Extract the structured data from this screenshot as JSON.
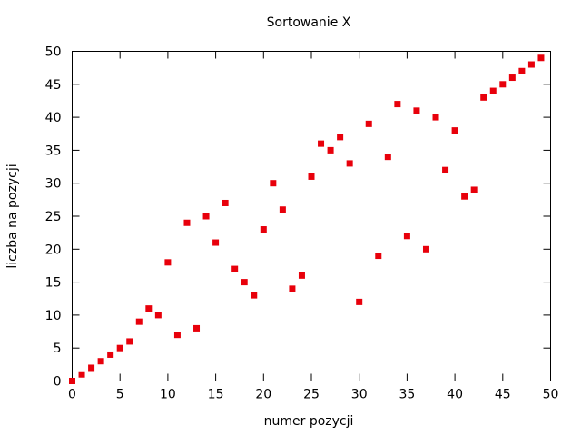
{
  "chart_data": {
    "type": "scatter",
    "title": "Sortowanie X",
    "xlabel": "numer pozycji",
    "ylabel": "liczba na pozycji",
    "xlim": [
      0,
      50
    ],
    "ylim": [
      0,
      50
    ],
    "x_ticks": [
      0,
      5,
      10,
      15,
      20,
      25,
      30,
      35,
      40,
      45,
      50
    ],
    "y_ticks": [
      0,
      5,
      10,
      15,
      20,
      25,
      30,
      35,
      40,
      45,
      50
    ],
    "grid": false,
    "marker_color": "#e8000b",
    "x": [
      0,
      1,
      2,
      3,
      4,
      5,
      6,
      7,
      8,
      9,
      10,
      11,
      12,
      13,
      14,
      15,
      16,
      17,
      18,
      19,
      20,
      21,
      22,
      23,
      24,
      25,
      26,
      27,
      28,
      29,
      30,
      31,
      32,
      33,
      34,
      35,
      36,
      37,
      38,
      39,
      40,
      41,
      42,
      43,
      44,
      45,
      46,
      47,
      48,
      49
    ],
    "y": [
      0,
      1,
      2,
      3,
      4,
      5,
      6,
      9,
      11,
      10,
      18,
      7,
      24,
      8,
      25,
      21,
      27,
      17,
      15,
      13,
      23,
      30,
      26,
      14,
      16,
      31,
      36,
      35,
      37,
      33,
      12,
      39,
      19,
      34,
      42,
      22,
      41,
      20,
      40,
      32,
      38,
      28,
      29,
      43,
      44,
      45,
      46,
      47,
      48,
      49
    ]
  }
}
